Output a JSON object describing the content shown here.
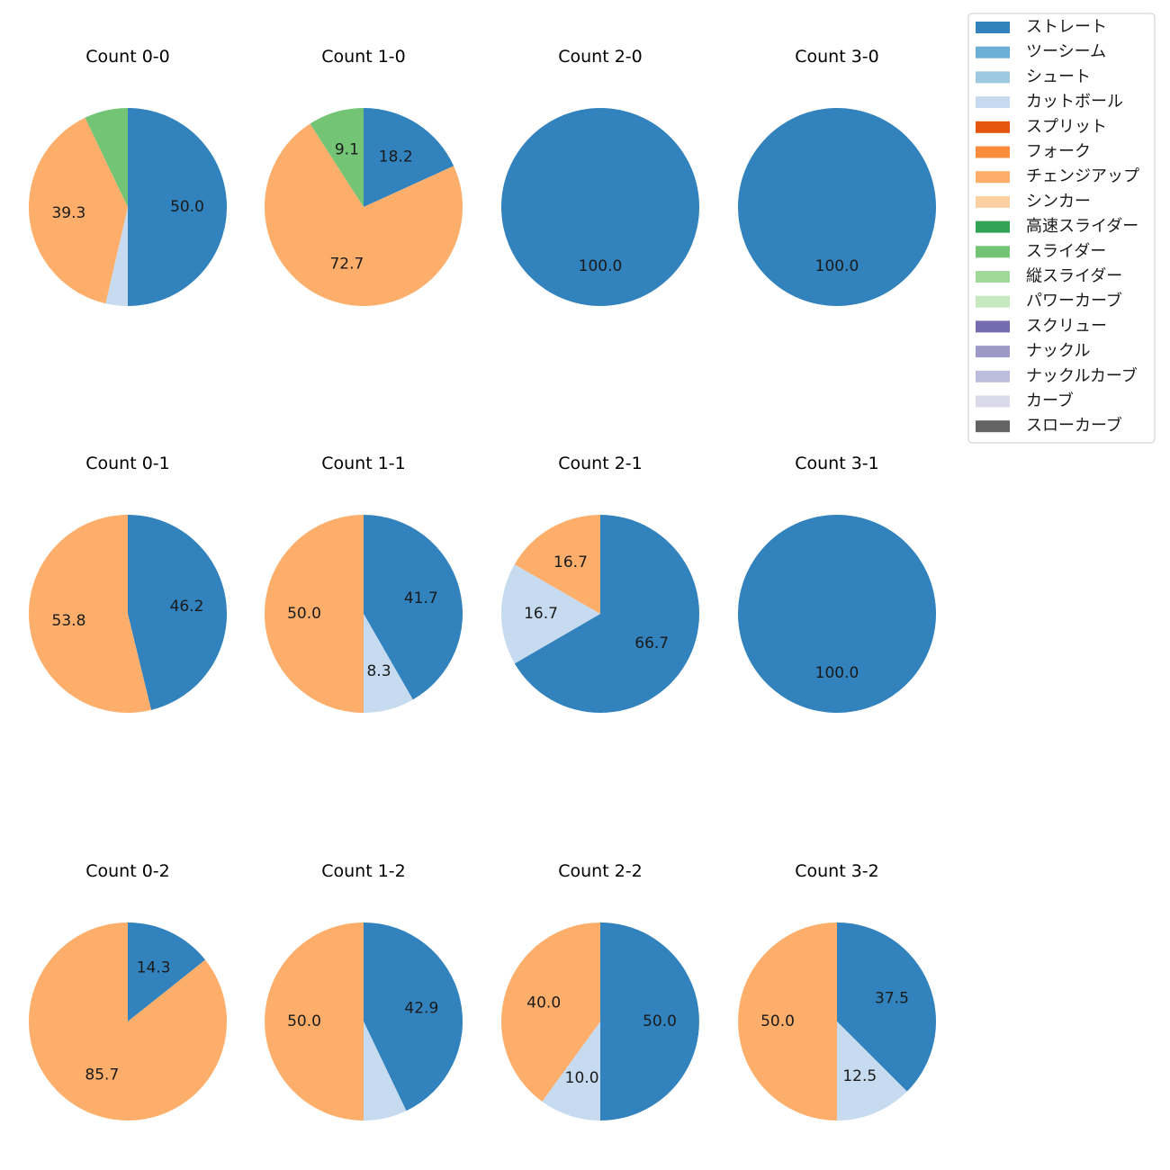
{
  "chart_data": {
    "type": "pie",
    "legend": {
      "position": "top-right",
      "entries": [
        {
          "label": "ストレート",
          "color": "#3182bd"
        },
        {
          "label": "ツーシーム",
          "color": "#6baed6"
        },
        {
          "label": "シュート",
          "color": "#9ecae1"
        },
        {
          "label": "カットボール",
          "color": "#c6dbef"
        },
        {
          "label": "スプリット",
          "color": "#e6550d"
        },
        {
          "label": "フォーク",
          "color": "#fd8d3c"
        },
        {
          "label": "チェンジアップ",
          "color": "#fdae6b"
        },
        {
          "label": "シンカー",
          "color": "#fdd0a2"
        },
        {
          "label": "高速スライダー",
          "color": "#31a354"
        },
        {
          "label": "スライダー",
          "color": "#74c476"
        },
        {
          "label": "縦スライダー",
          "color": "#a1d99b"
        },
        {
          "label": "パワーカーブ",
          "color": "#c7e9c0"
        },
        {
          "label": "スクリュー",
          "color": "#756bb1"
        },
        {
          "label": "ナックル",
          "color": "#9e9ac8"
        },
        {
          "label": "ナックルカーブ",
          "color": "#bcbddc"
        },
        {
          "label": "カーブ",
          "color": "#dadaeb"
        },
        {
          "label": "スローカーブ",
          "color": "#636363"
        }
      ]
    },
    "charts": [
      {
        "title": "Count 0-0",
        "slices": [
          {
            "pitch": "ストレート",
            "value": 50.0,
            "label": "50.0"
          },
          {
            "pitch": "カットボール",
            "value": 3.6,
            "label": ""
          },
          {
            "pitch": "チェンジアップ",
            "value": 39.3,
            "label": "39.3"
          },
          {
            "pitch": "スライダー",
            "value": 7.1,
            "label": ""
          }
        ]
      },
      {
        "title": "Count 1-0",
        "slices": [
          {
            "pitch": "ストレート",
            "value": 18.2,
            "label": "18.2"
          },
          {
            "pitch": "チェンジアップ",
            "value": 72.7,
            "label": "72.7"
          },
          {
            "pitch": "スライダー",
            "value": 9.1,
            "label": "9.1"
          }
        ]
      },
      {
        "title": "Count 2-0",
        "slices": [
          {
            "pitch": "ストレート",
            "value": 100.0,
            "label": "100.0"
          }
        ]
      },
      {
        "title": "Count 3-0",
        "slices": [
          {
            "pitch": "ストレート",
            "value": 100.0,
            "label": "100.0"
          }
        ]
      },
      {
        "title": "Count 0-1",
        "slices": [
          {
            "pitch": "ストレート",
            "value": 46.2,
            "label": "46.2"
          },
          {
            "pitch": "チェンジアップ",
            "value": 53.8,
            "label": "53.8"
          }
        ]
      },
      {
        "title": "Count 1-1",
        "slices": [
          {
            "pitch": "ストレート",
            "value": 41.7,
            "label": "41.7"
          },
          {
            "pitch": "カットボール",
            "value": 8.3,
            "label": "8.3"
          },
          {
            "pitch": "チェンジアップ",
            "value": 50.0,
            "label": "50.0"
          }
        ]
      },
      {
        "title": "Count 2-1",
        "slices": [
          {
            "pitch": "ストレート",
            "value": 66.7,
            "label": "66.7"
          },
          {
            "pitch": "カットボール",
            "value": 16.7,
            "label": "16.7"
          },
          {
            "pitch": "チェンジアップ",
            "value": 16.7,
            "label": "16.7"
          }
        ]
      },
      {
        "title": "Count 3-1",
        "slices": [
          {
            "pitch": "ストレート",
            "value": 100.0,
            "label": "100.0"
          }
        ]
      },
      {
        "title": "Count 0-2",
        "slices": [
          {
            "pitch": "ストレート",
            "value": 14.3,
            "label": "14.3"
          },
          {
            "pitch": "チェンジアップ",
            "value": 85.7,
            "label": "85.7"
          }
        ]
      },
      {
        "title": "Count 1-2",
        "slices": [
          {
            "pitch": "ストレート",
            "value": 42.9,
            "label": "42.9"
          },
          {
            "pitch": "カットボール",
            "value": 7.1,
            "label": ""
          },
          {
            "pitch": "チェンジアップ",
            "value": 50.0,
            "label": "50.0"
          }
        ]
      },
      {
        "title": "Count 2-2",
        "slices": [
          {
            "pitch": "ストレート",
            "value": 50.0,
            "label": "50.0"
          },
          {
            "pitch": "カットボール",
            "value": 10.0,
            "label": "10.0"
          },
          {
            "pitch": "チェンジアップ",
            "value": 40.0,
            "label": "40.0"
          }
        ]
      },
      {
        "title": "Count 3-2",
        "slices": [
          {
            "pitch": "ストレート",
            "value": 37.5,
            "label": "37.5"
          },
          {
            "pitch": "カットボール",
            "value": 12.5,
            "label": "12.5"
          },
          {
            "pitch": "チェンジアップ",
            "value": 50.0,
            "label": "50.0"
          }
        ]
      }
    ]
  }
}
